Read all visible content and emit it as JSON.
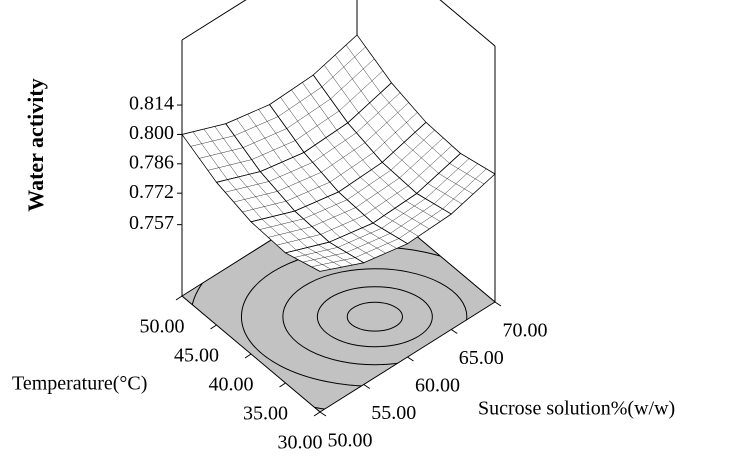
{
  "chart_data": {
    "type": "surface",
    "zlabel": "Water activity",
    "xlabel": "Sucrose solution%(w/w)",
    "ylabel": "Temperature(°C)",
    "xlim": [
      50,
      70
    ],
    "xticks": [
      {
        "value": 50,
        "label": "50.00"
      },
      {
        "value": 55,
        "label": "55.00"
      },
      {
        "value": 60,
        "label": "60.00"
      },
      {
        "value": 65,
        "label": "65.00"
      },
      {
        "value": 70,
        "label": "70.00"
      }
    ],
    "ylim": [
      30,
      50
    ],
    "yticks": [
      {
        "value": 30,
        "label": "30.00"
      },
      {
        "value": 35,
        "label": "35.00"
      },
      {
        "value": 40,
        "label": "40.00"
      },
      {
        "value": 45,
        "label": "45.00"
      },
      {
        "value": 50,
        "label": "50.00"
      }
    ],
    "zlim": [
      0.723,
      0.845
    ],
    "zticks": [
      0.757,
      0.772,
      0.786,
      {
        "value": 0.8,
        "label": "0.800"
      },
      0.814
    ],
    "x": [
      50,
      55,
      60,
      65,
      70
    ],
    "y": [
      30,
      35,
      40,
      45,
      50
    ],
    "z": [
      [
        0.79,
        0.781,
        0.777,
        0.778,
        0.784
      ],
      [
        0.785,
        0.777,
        0.773,
        0.774,
        0.78
      ],
      [
        0.786,
        0.778,
        0.774,
        0.775,
        0.781
      ],
      [
        0.791,
        0.783,
        0.779,
        0.78,
        0.786
      ],
      [
        0.8,
        0.792,
        0.788,
        0.789,
        0.795
      ]
    ]
  }
}
